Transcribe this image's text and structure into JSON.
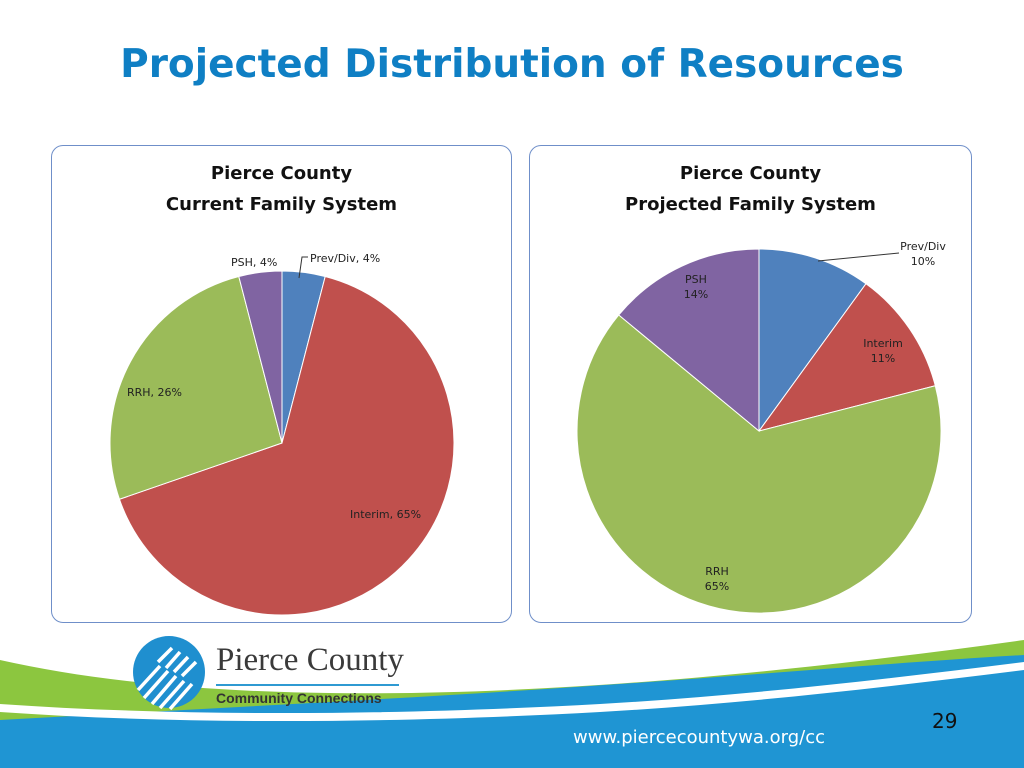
{
  "slide": {
    "title": "Projected Distribution of Resources",
    "page_number": "29",
    "url": "www.piercecountywa.org/cc"
  },
  "logo": {
    "name": "Pierce County",
    "subtitle": "Community Connections"
  },
  "colors": {
    "title": "#0f7fc4",
    "prev_div": "#4f81bd",
    "interim": "#c0504d",
    "rrh": "#9bbb59",
    "psh": "#8064a2",
    "footer_blue": "#1f95d3",
    "footer_green": "#8cc63f"
  },
  "chart_data": [
    {
      "type": "pie",
      "title_lines": [
        "Pierce County",
        "Current Family System"
      ],
      "slices": [
        {
          "label": "Prev/Div",
          "value": 4,
          "display": "Prev/Div, 4%",
          "color": "#4f81bd"
        },
        {
          "label": "Interim",
          "value": 65,
          "display": "Interim, 65%",
          "color": "#c0504d"
        },
        {
          "label": "RRH",
          "value": 26,
          "display": "RRH, 26%",
          "color": "#9bbb59"
        },
        {
          "label": "PSH",
          "value": 4,
          "display": "PSH, 4%",
          "color": "#8064a2"
        }
      ]
    },
    {
      "type": "pie",
      "title_lines": [
        "Pierce County",
        "Projected Family System"
      ],
      "slices": [
        {
          "label": "Prev/Div",
          "value": 10,
          "display": [
            "Prev/Div",
            "10%"
          ],
          "color": "#4f81bd"
        },
        {
          "label": "Interim",
          "value": 11,
          "display": [
            "Interim",
            "11%"
          ],
          "color": "#c0504d"
        },
        {
          "label": "RRH",
          "value": 65,
          "display": [
            "RRH",
            "65%"
          ],
          "color": "#9bbb59"
        },
        {
          "label": "PSH",
          "value": 14,
          "display": [
            "PSH",
            "14%"
          ],
          "color": "#8064a2"
        }
      ]
    }
  ]
}
